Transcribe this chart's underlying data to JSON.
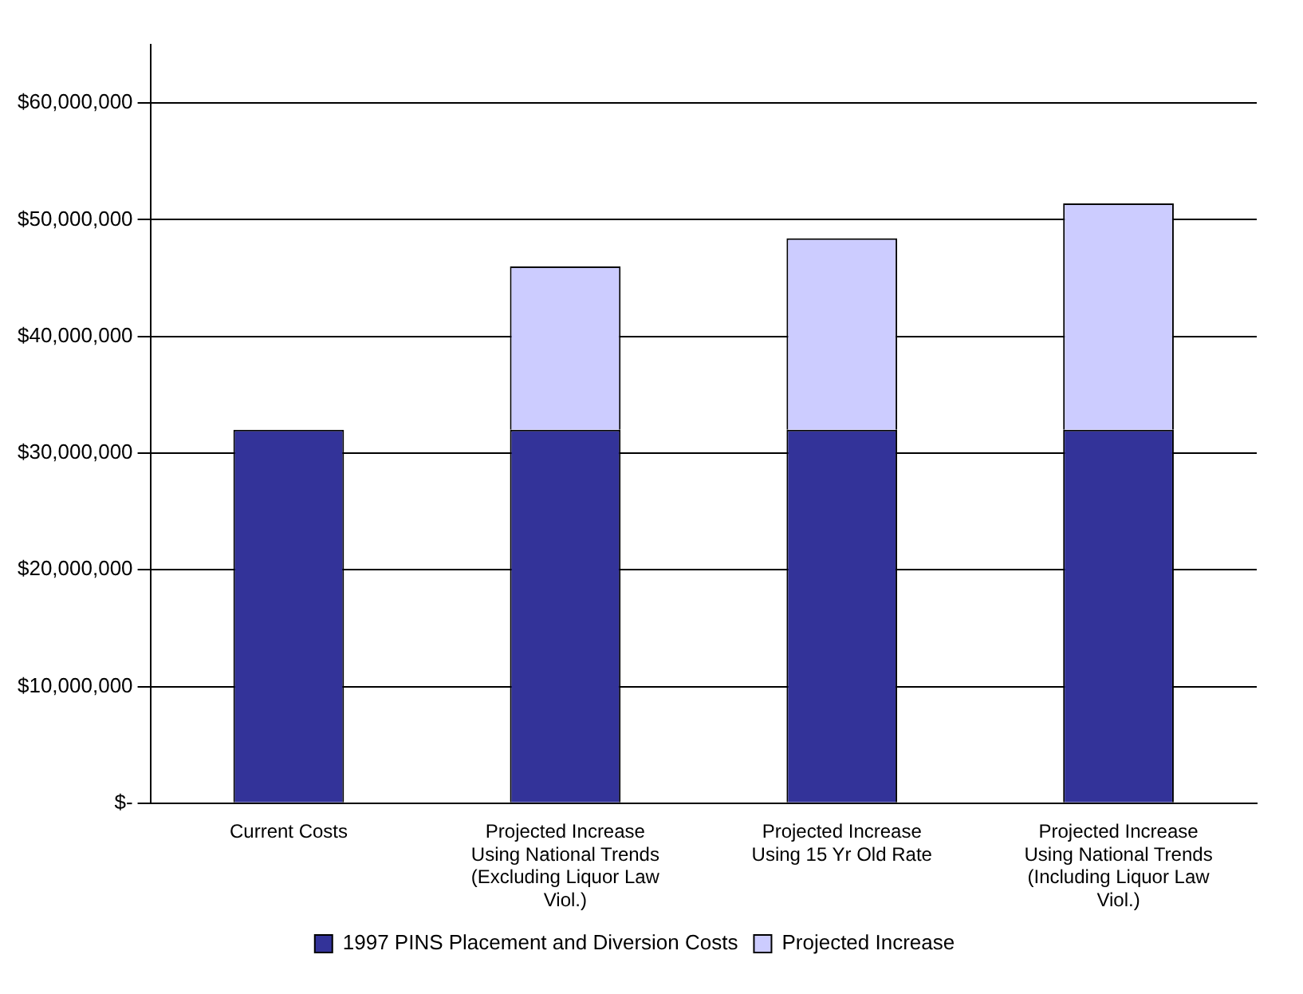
{
  "chart_data": {
    "type": "bar",
    "stacked": true,
    "categories": [
      "Current Costs",
      "Projected Increase Using National Trends (Excluding Liquor Law Viol.)",
      "Projected Increase Using 15 Yr Old Rate",
      "Projected Increase Using National Trends (Including Liquor Law Viol.)"
    ],
    "series": [
      {
        "name": "1997 PINS Placement and Diversion Costs",
        "color": "#333399",
        "values": [
          32000000,
          32000000,
          32000000,
          32000000
        ]
      },
      {
        "name": "Projected Increase",
        "color": "#ccccff",
        "values": [
          null,
          14000000,
          16400000,
          19400000
        ]
      }
    ],
    "ylim": [
      0,
      65000000
    ],
    "yticks": [
      {
        "value": 0,
        "label": "$-"
      },
      {
        "value": 10000000,
        "label": "$10,000,000"
      },
      {
        "value": 20000000,
        "label": "$20,000,000"
      },
      {
        "value": 30000000,
        "label": "$30,000,000"
      },
      {
        "value": 40000000,
        "label": "$40,000,000"
      },
      {
        "value": 50000000,
        "label": "$50,000,000"
      },
      {
        "value": 60000000,
        "label": "$60,000,000"
      }
    ],
    "grid": "y",
    "legend": "bottom"
  }
}
